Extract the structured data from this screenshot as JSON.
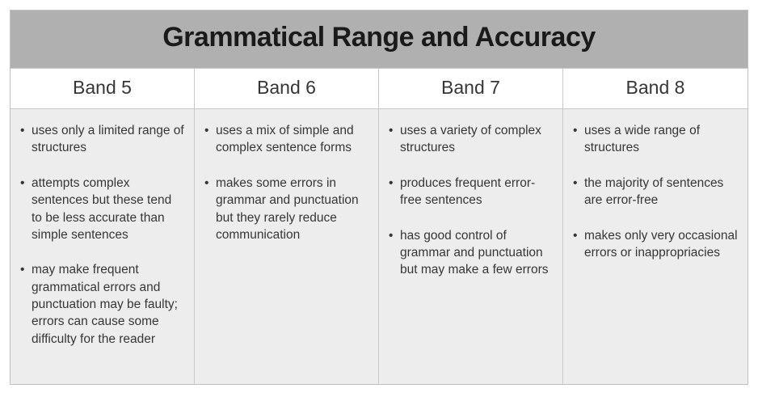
{
  "title": "Grammatical Range and Accuracy",
  "title_fontsize": 34,
  "title_fontweight": 700,
  "title_bg_color": "#b0b0b0",
  "border_color": "#c8c8c8",
  "header_bg_color": "#ffffff",
  "body_bg_color": "#ededed",
  "text_color": "#363636",
  "header_fontsize": 23,
  "body_fontsize": 15.5,
  "columns": [
    {
      "header": "Band 5",
      "items": [
        "uses only a limited range of structures",
        "attempts complex sentences but these tend to be less accurate than simple sentences",
        "may make frequent grammatical errors and punctuation may be faulty; errors can cause some difficulty for the reader"
      ]
    },
    {
      "header": "Band 6",
      "items": [
        "uses a mix of simple and complex sentence forms",
        "makes some errors in grammar and punctuation but they rarely reduce communication"
      ]
    },
    {
      "header": "Band 7",
      "items": [
        "uses a variety of complex structures",
        "produces frequent error-free sentences",
        "has good control of grammar and punctuation but may make a few errors"
      ]
    },
    {
      "header": "Band 8",
      "items": [
        "uses a wide range of structures",
        " the majority of sentences are error-free",
        "makes only very occasional errors or inappropriacies"
      ]
    }
  ]
}
